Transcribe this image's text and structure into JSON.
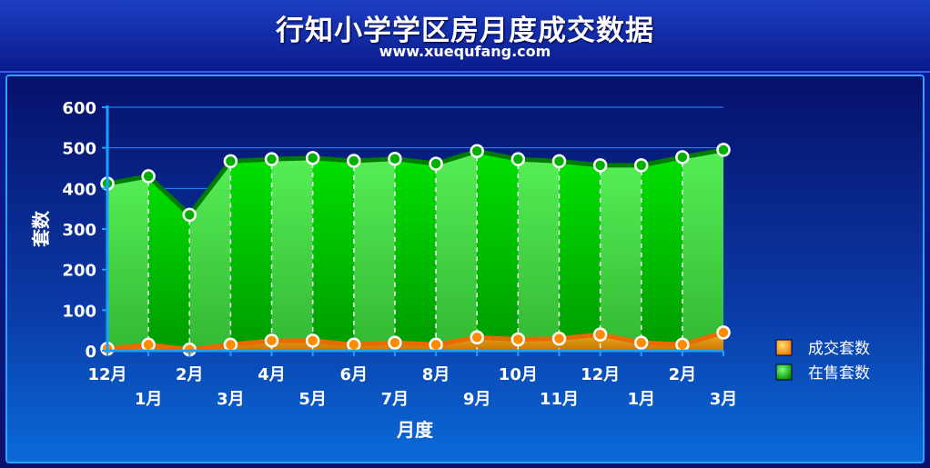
{
  "header": {
    "title": "行知小学学区房月度成交数据",
    "subtitle": "www.xuequfang.com"
  },
  "chart_data": {
    "type": "area",
    "xlabel": "月度",
    "ylabel": "套数",
    "ylim": [
      0,
      600
    ],
    "yticks": [
      0,
      100,
      200,
      300,
      400,
      500,
      600
    ],
    "grid": true,
    "legend_position": "right",
    "categories": [
      "12月",
      "1月",
      "2月",
      "3月",
      "4月",
      "5月",
      "6月",
      "7月",
      "8月",
      "9月",
      "10月",
      "11月",
      "12月",
      "1月",
      "2月",
      "3月"
    ],
    "series": [
      {
        "name": "成交套数",
        "color": "#ff8c00",
        "values": [
          5,
          15,
          3,
          15,
          25,
          25,
          15,
          20,
          15,
          33,
          28,
          30,
          40,
          20,
          15,
          45
        ]
      },
      {
        "name": "在售套数",
        "color": "#00c000",
        "values": [
          412,
          430,
          335,
          467,
          472,
          475,
          468,
          473,
          461,
          492,
          472,
          467,
          457,
          457,
          477,
          495
        ]
      }
    ]
  }
}
